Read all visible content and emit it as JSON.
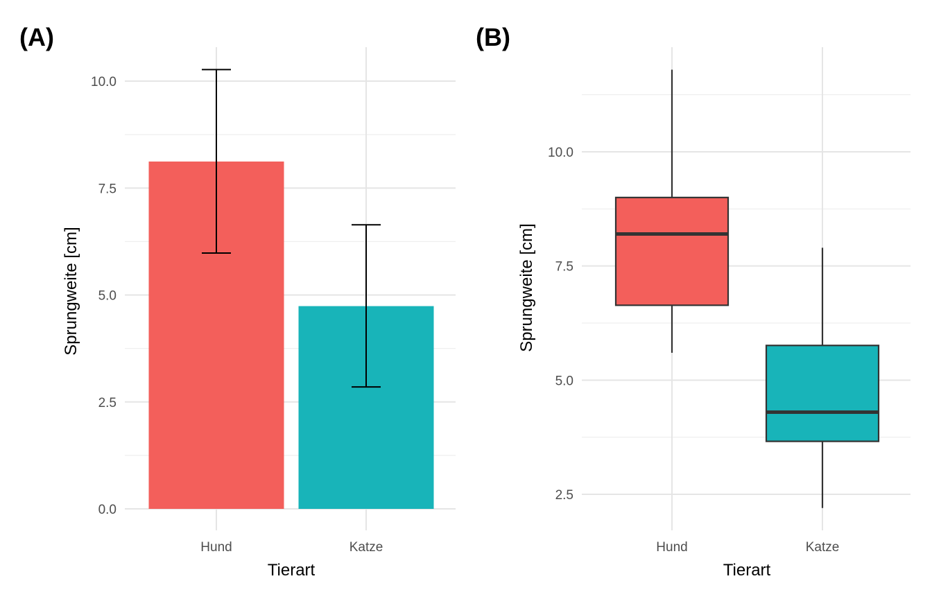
{
  "chart_data": [
    {
      "panel": "(A)",
      "type": "bar",
      "categories": [
        "Hund",
        "Katze"
      ],
      "values": [
        8.12,
        4.74
      ],
      "error_low": [
        5.98,
        2.85
      ],
      "error_high": [
        10.27,
        6.64
      ],
      "colors": [
        "#F35F5B",
        "#18B4B9"
      ],
      "xlabel": "Tierart",
      "ylabel": "Sprungweite [cm]",
      "ylim": [
        0,
        10.8
      ],
      "yticks": [
        0,
        2.5,
        5,
        7.5,
        10
      ],
      "ytick_labels": [
        "0.0",
        "2.5",
        "5.0",
        "7.5",
        "10.0"
      ],
      "grid": true
    },
    {
      "panel": "(B)",
      "type": "boxplot",
      "categories": [
        "Hund",
        "Katze"
      ],
      "boxes": [
        {
          "min": 5.6,
          "q1": 6.64,
          "median": 8.2,
          "q3": 9.0,
          "max": 11.8
        },
        {
          "min": 2.2,
          "q1": 3.66,
          "median": 4.3,
          "q3": 5.76,
          "max": 7.9
        }
      ],
      "colors": [
        "#F35F5B",
        "#18B4B9"
      ],
      "xlabel": "Tierart",
      "ylabel": "Sprungweite [cm]",
      "ylim": [
        2.2,
        12.3
      ],
      "yticks": [
        2.5,
        5,
        7.5,
        10
      ],
      "ytick_labels": [
        "2.5",
        "5.0",
        "7.5",
        "10.0"
      ],
      "grid": true
    }
  ]
}
